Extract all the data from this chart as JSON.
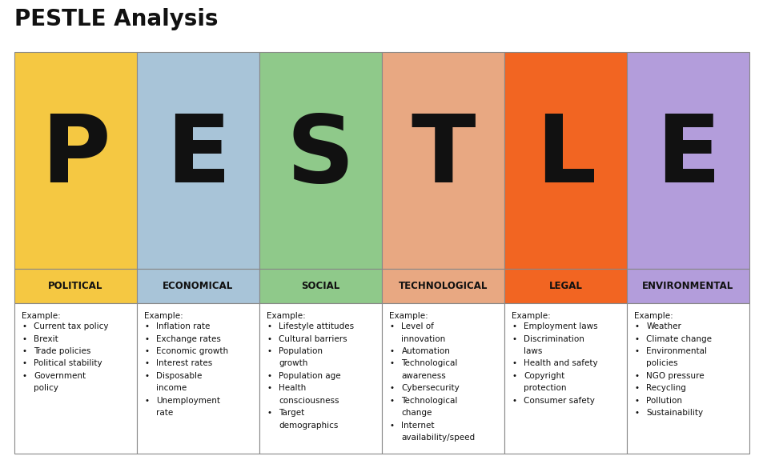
{
  "title": "PESTLE Analysis",
  "title_fontsize": 20,
  "title_fontweight": "bold",
  "background_color": "#ffffff",
  "columns": [
    {
      "letter": "P",
      "label": "POLITICAL",
      "color": "#F5C842",
      "items": [
        "Current tax policy",
        "Brexit",
        "Trade policies",
        "Political stability",
        "Government\npolicy"
      ]
    },
    {
      "letter": "E",
      "label": "ECONOMICAL",
      "color": "#A8C4D8",
      "items": [
        "Inflation rate",
        "Exchange rates",
        "Economic growth",
        "Interest rates",
        "Disposable\nincome",
        "Unemployment\nrate"
      ]
    },
    {
      "letter": "S",
      "label": "SOCIAL",
      "color": "#8FC98A",
      "items": [
        "Lifestyle attitudes",
        "Cultural barriers",
        "Population\ngrowth",
        "Population age",
        "Health\nconsciousness",
        "Target\ndemographics"
      ]
    },
    {
      "letter": "T",
      "label": "TECHNOLOGICAL",
      "color": "#E8A882",
      "items": [
        "Level of\ninnovation",
        "Automation",
        "Technological\nawareness",
        "Cybersecurity",
        "Technological\nchange",
        "Internet\navailability/speed"
      ]
    },
    {
      "letter": "L",
      "label": "LEGAL",
      "color": "#F26522",
      "items": [
        "Employment laws",
        "Discrimination\nlaws",
        "Health and safety",
        "Copyright\nprotection",
        "Consumer safety"
      ]
    },
    {
      "letter": "E",
      "label": "ENVIRONMENTAL",
      "color": "#B39DDB",
      "items": [
        "Weather",
        "Climate change",
        "Environmental\npolicies",
        "NGO pressure",
        "Recycling",
        "Pollution",
        "Sustainability"
      ]
    }
  ],
  "example_text": "Example:",
  "bullet": "•",
  "border_color": "#888888",
  "border_lw": 0.8,
  "letter_fontsize": 85,
  "label_fontsize": 8.5,
  "item_fontsize": 7.5,
  "example_fontsize": 7.5
}
